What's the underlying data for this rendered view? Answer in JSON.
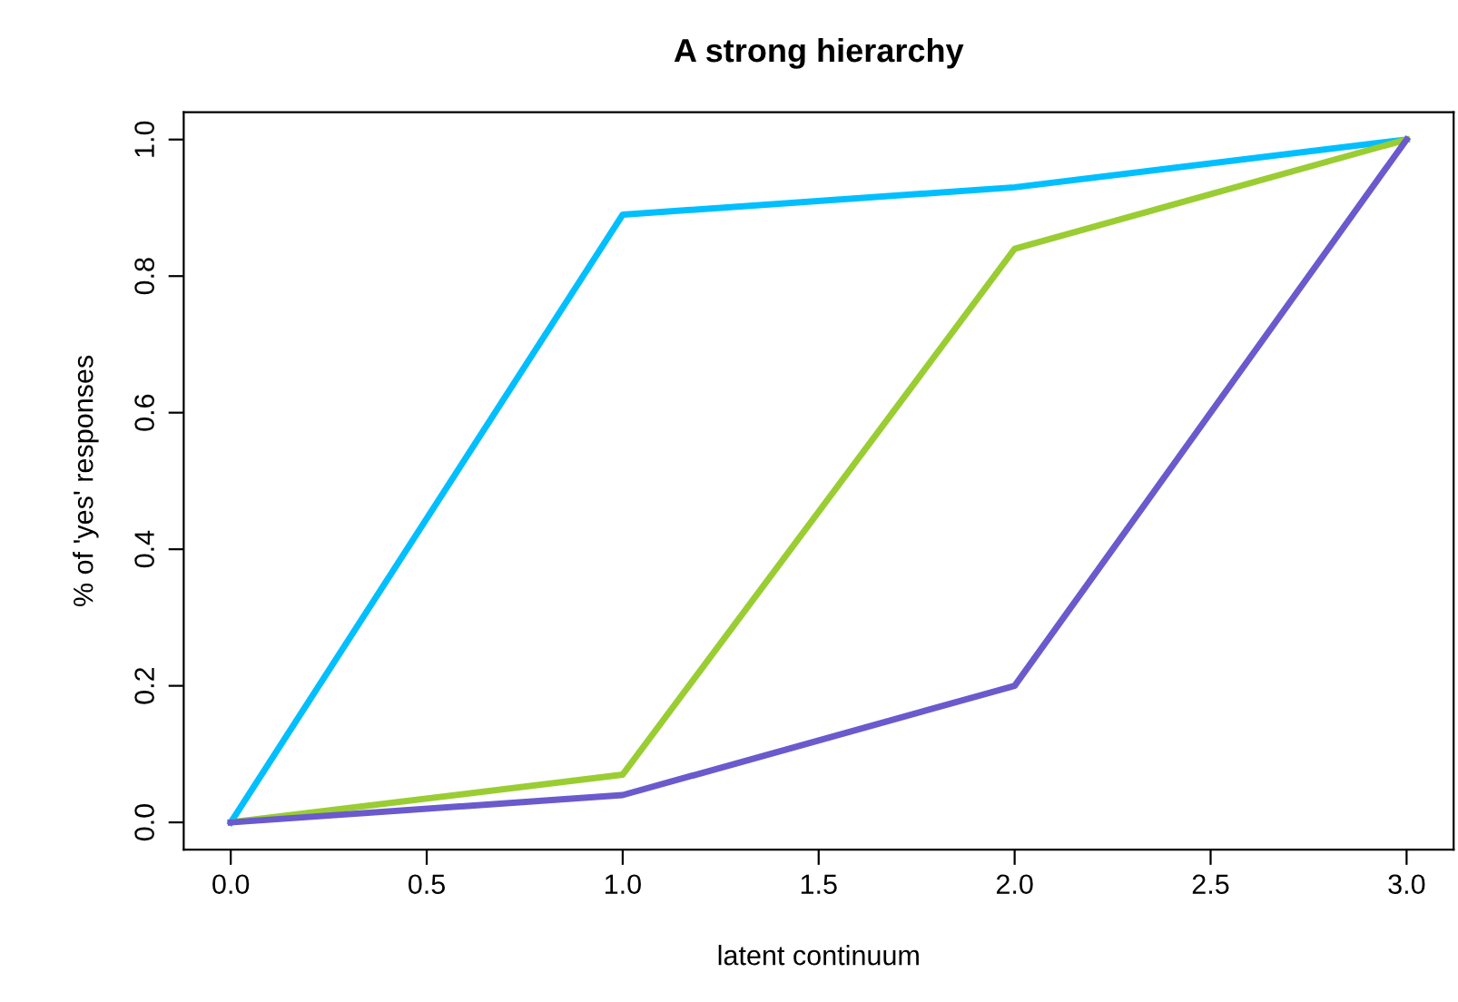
{
  "chart_data": {
    "type": "line",
    "title": "A strong hierarchy",
    "xlabel": "latent continuum",
    "ylabel": "% of 'yes' responses",
    "x": [
      0,
      1,
      2,
      3
    ],
    "series": [
      {
        "color": "#00bfff",
        "values": [
          0,
          0.89,
          0.93,
          1
        ]
      },
      {
        "color": "#9acd32",
        "values": [
          0,
          0.07,
          0.84,
          1
        ]
      },
      {
        "color": "#6a5acd",
        "values": [
          0,
          0.04,
          0.2,
          1
        ]
      }
    ],
    "xlim": [
      -0.12,
      3.12
    ],
    "ylim": [
      -0.04,
      1.04
    ],
    "xticks": [
      {
        "value": 0,
        "label": "0.0"
      },
      {
        "value": 0.5,
        "label": "0.5"
      },
      {
        "value": 1,
        "label": "1.0"
      },
      {
        "value": 1.5,
        "label": "1.5"
      },
      {
        "value": 2,
        "label": "2.0"
      },
      {
        "value": 2.5,
        "label": "2.5"
      },
      {
        "value": 3,
        "label": "3.0"
      }
    ],
    "yticks": [
      {
        "value": 0,
        "label": "0.0"
      },
      {
        "value": 0.2,
        "label": "0.2"
      },
      {
        "value": 0.4,
        "label": "0.4"
      },
      {
        "value": 0.6,
        "label": "0.6"
      },
      {
        "value": 0.8,
        "label": "0.8"
      },
      {
        "value": 1,
        "label": "1.0"
      }
    ],
    "grid": false,
    "legend": false,
    "marker": "none",
    "line_style": "solid"
  }
}
